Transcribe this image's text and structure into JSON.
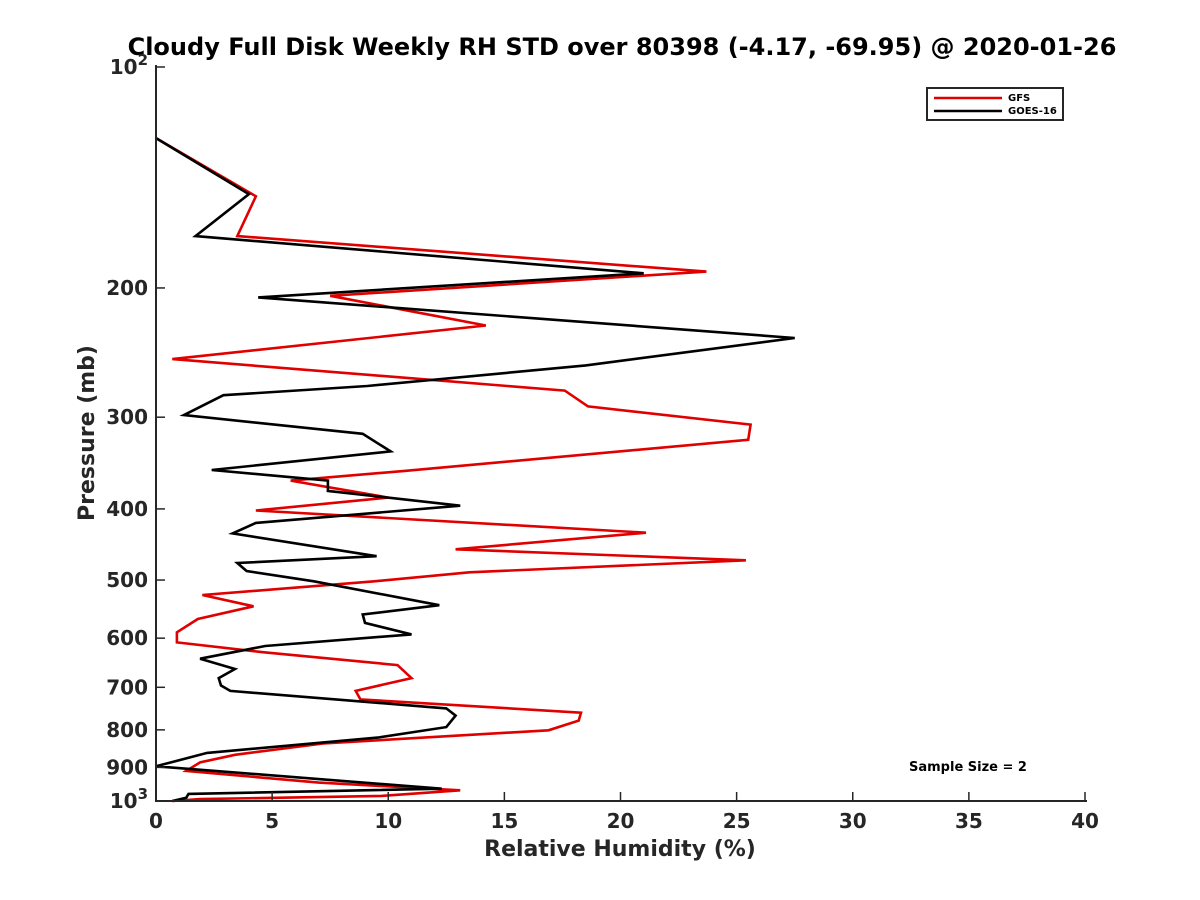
{
  "chart_data": {
    "type": "line",
    "title": "Cloudy Full Disk Weekly RH STD over 80398 (-4.17, -69.95) @ 2020-01-26",
    "xlabel": "Relative Humidity (%)",
    "ylabel": "Pressure (mb)",
    "xlim": [
      0,
      40
    ],
    "ylim": [
      100,
      1000
    ],
    "yscale": "log",
    "yreversed": true,
    "x_ticks": [
      0,
      5,
      10,
      15,
      20,
      25,
      30,
      35,
      40
    ],
    "x_tick_labels": [
      "0",
      "5",
      "10",
      "15",
      "20",
      "25",
      "30",
      "35",
      "40"
    ],
    "y_ticks": [
      {
        "value": 100,
        "base": "10",
        "exp": "2"
      },
      {
        "value": 200,
        "label": "200"
      },
      {
        "value": 300,
        "label": "300"
      },
      {
        "value": 400,
        "label": "400"
      },
      {
        "value": 500,
        "label": "500"
      },
      {
        "value": 600,
        "label": "600"
      },
      {
        "value": 700,
        "label": "700"
      },
      {
        "value": 800,
        "label": "800"
      },
      {
        "value": 900,
        "label": "900"
      },
      {
        "value": 1000,
        "base": "10",
        "exp": "3"
      }
    ],
    "legend_position": "top-right",
    "annotation": "Sample Size = 2",
    "series": [
      {
        "name": "GFS",
        "color": "#e00000",
        "points": [
          [
            0,
            125
          ],
          [
            4.3,
            150
          ],
          [
            3.5,
            170
          ],
          [
            23.7,
            190
          ],
          [
            7.5,
            205
          ],
          [
            14.2,
            225
          ],
          [
            0.7,
            250
          ],
          [
            17.6,
            276
          ],
          [
            18.6,
            290
          ],
          [
            25.6,
            307
          ],
          [
            25.5,
            322
          ],
          [
            10.7,
            355
          ],
          [
            5.8,
            366
          ],
          [
            10.0,
            386
          ],
          [
            4.3,
            402
          ],
          [
            21.1,
            431
          ],
          [
            12.9,
            454
          ],
          [
            25.4,
            470
          ],
          [
            13.5,
            488
          ],
          [
            9.4,
            502
          ],
          [
            2.0,
            524
          ],
          [
            4.2,
            543
          ],
          [
            1.8,
            565
          ],
          [
            0.9,
            589
          ],
          [
            0.9,
            608
          ],
          [
            4.6,
            627
          ],
          [
            10.4,
            653
          ],
          [
            11.0,
            680
          ],
          [
            8.6,
            708
          ],
          [
            8.8,
            727
          ],
          [
            18.3,
            758
          ],
          [
            18.2,
            777
          ],
          [
            16.9,
            801
          ],
          [
            7.2,
            835
          ],
          [
            3.4,
            865
          ],
          [
            1.9,
            886
          ],
          [
            1.3,
            910
          ],
          [
            7.0,
            944
          ],
          [
            13.1,
            967
          ],
          [
            9.7,
            984
          ],
          [
            1.9,
            994
          ],
          [
            0.7,
            1000
          ]
        ]
      },
      {
        "name": "GOES-16",
        "color": "#000000",
        "points": [
          [
            0,
            125
          ],
          [
            4.0,
            149
          ],
          [
            1.7,
            170
          ],
          [
            21.0,
            191
          ],
          [
            4.4,
            206
          ],
          [
            27.5,
            234
          ],
          [
            18.5,
            255
          ],
          [
            9.1,
            272
          ],
          [
            2.9,
            280
          ],
          [
            1.2,
            298
          ],
          [
            8.9,
            316
          ],
          [
            10.1,
            334
          ],
          [
            2.4,
            354
          ],
          [
            7.4,
            366
          ],
          [
            7.4,
            378
          ],
          [
            13.1,
            396
          ],
          [
            4.3,
            418
          ],
          [
            3.3,
            432
          ],
          [
            9.5,
            464
          ],
          [
            3.5,
            474
          ],
          [
            3.9,
            486
          ],
          [
            6.8,
            502
          ],
          [
            12.2,
            541
          ],
          [
            8.9,
            557
          ],
          [
            9.0,
            572
          ],
          [
            11.0,
            593
          ],
          [
            4.7,
            615
          ],
          [
            1.9,
            640
          ],
          [
            3.4,
            661
          ],
          [
            2.7,
            680
          ],
          [
            2.8,
            696
          ],
          [
            3.2,
            708
          ],
          [
            12.5,
            748
          ],
          [
            12.9,
            765
          ],
          [
            12.5,
            793
          ],
          [
            9.6,
            819
          ],
          [
            2.2,
            860
          ],
          [
            0,
            897
          ],
          [
            12.3,
            962
          ],
          [
            1.4,
            978
          ],
          [
            1.3,
            990
          ],
          [
            0.7,
            1000
          ]
        ]
      }
    ]
  }
}
